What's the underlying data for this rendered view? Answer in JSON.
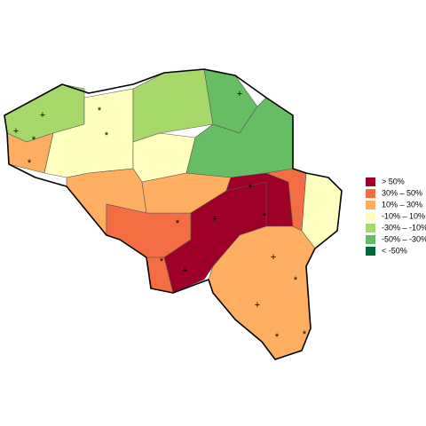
{
  "legend": [
    {
      "label": "> 50%",
      "color": "#9e0027"
    },
    {
      "label": "30%  –  50%",
      "color": "#f46d43"
    },
    {
      "label": "10%  –  30%",
      "color": "#fdae61"
    },
    {
      "label": "-10%  –  10%",
      "color": "#ffffbf"
    },
    {
      "label": "-30%  – -10%",
      "color": "#a6d96a"
    },
    {
      "label": "-50%  – -30%",
      "color": "#66bd63"
    },
    {
      "label": "< -50%",
      "color": "#006837"
    }
  ],
  "map_symbols": [
    "+",
    "*"
  ]
}
